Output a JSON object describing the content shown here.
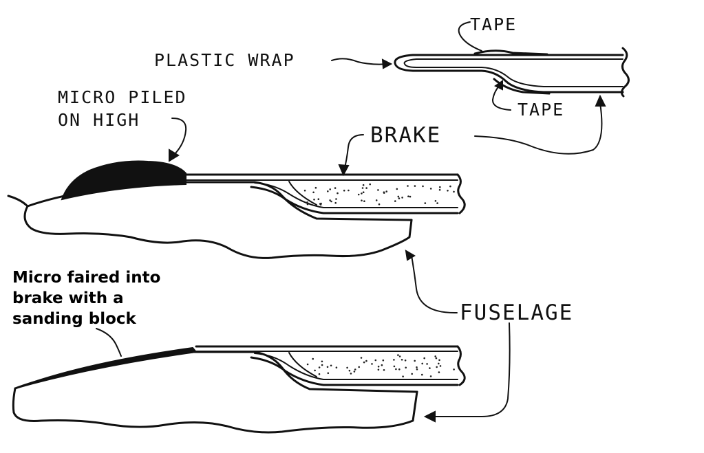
{
  "labels": {
    "tape_top": "TAPE",
    "plastic_wrap": "PLASTIC WRAP",
    "tape_bottom": "TAPE",
    "micro_piled_line1": "MICRO PILED",
    "micro_piled_line2": "ON HIGH",
    "brake": "BRAKE",
    "fuselage": "FUSELAGE",
    "micro_faired_line1": "Micro faired into",
    "micro_faired_line2": "brake with a",
    "micro_faired_line3": "sanding block"
  },
  "colors": {
    "ink": "#111111",
    "paper": "#ffffff"
  }
}
